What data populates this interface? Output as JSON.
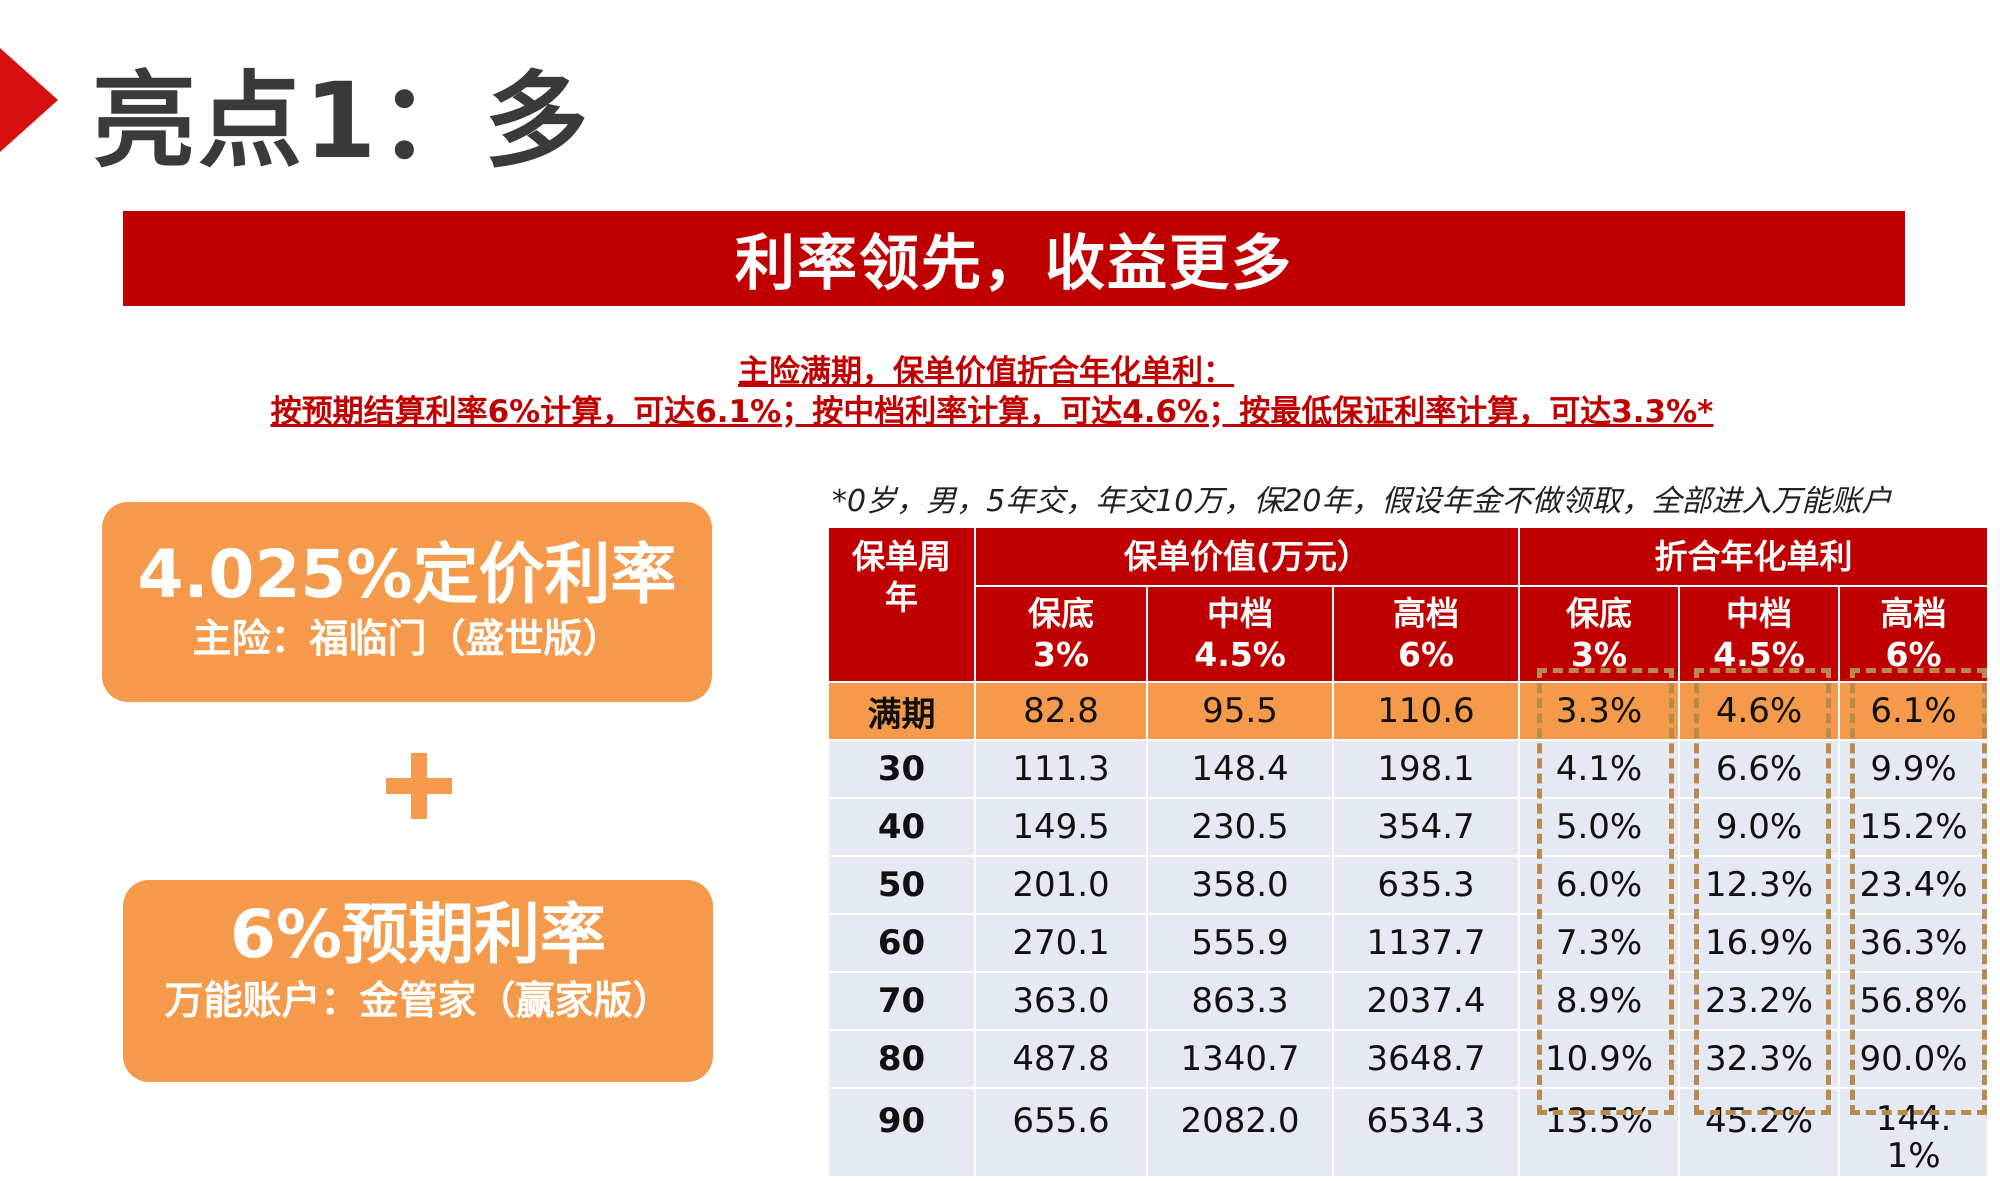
{
  "page": {
    "title": "亮点1：多",
    "banner": "利率领先，收益更多",
    "subhead_line1": "主险满期，保单价值折合年化单利：",
    "subhead_line2": "按预期结算利率6%计算，可达6.1%；按中档利率计算，可达4.6%；按最低保证利率计算，可达3.3%*"
  },
  "boxes": {
    "box1_main": "4.025%定价利率",
    "box1_sub": "主险：福临门（盛世版）",
    "box2_main": "6%预期利率",
    "box2_sub": "万能账户：金管家（赢家版）"
  },
  "note": "*0岁，男，5年交，年交10万，保20年，假设年金不做领取，全部进入万能账户",
  "table": {
    "header_age": "保单周年",
    "header_value": "保单价值(万元）",
    "header_rate": "折合年化单利",
    "value_cols": [
      "保底\n3%",
      "中档\n4.5%",
      "高档\n6%"
    ],
    "rate_cols": [
      "保底\n3%",
      "中档\n4.5%",
      "高档\n6%"
    ],
    "rows": [
      {
        "age": "满期",
        "values": [
          "82.8",
          "95.5",
          "110.6"
        ],
        "rates": [
          "3.3%",
          "4.6%",
          "6.1%"
        ]
      },
      {
        "age": "30",
        "values": [
          "111.3",
          "148.4",
          "198.1"
        ],
        "rates": [
          "4.1%",
          "6.6%",
          "9.9%"
        ]
      },
      {
        "age": "40",
        "values": [
          "149.5",
          "230.5",
          "354.7"
        ],
        "rates": [
          "5.0%",
          "9.0%",
          "15.2%"
        ]
      },
      {
        "age": "50",
        "values": [
          "201.0",
          "358.0",
          "635.3"
        ],
        "rates": [
          "6.0%",
          "12.3%",
          "23.4%"
        ]
      },
      {
        "age": "60",
        "values": [
          "270.1",
          "555.9",
          "1137.7"
        ],
        "rates": [
          "7.3%",
          "16.9%",
          "36.3%"
        ]
      },
      {
        "age": "70",
        "values": [
          "363.0",
          "863.3",
          "2037.4"
        ],
        "rates": [
          "8.9%",
          "23.2%",
          "56.8%"
        ]
      },
      {
        "age": "80",
        "values": [
          "487.8",
          "1340.7",
          "3648.7"
        ],
        "rates": [
          "10.9%",
          "32.3%",
          "90.0%"
        ]
      },
      {
        "age": "90",
        "values": [
          "655.6",
          "2082.0",
          "6534.3"
        ],
        "rates": [
          "13.5%",
          "45.2%",
          "144.1%"
        ]
      }
    ]
  },
  "colors": {
    "red": "#c00000",
    "orange": "#f5994b",
    "row_bg": "#e4e9f3",
    "dash": "#b98a4e"
  }
}
